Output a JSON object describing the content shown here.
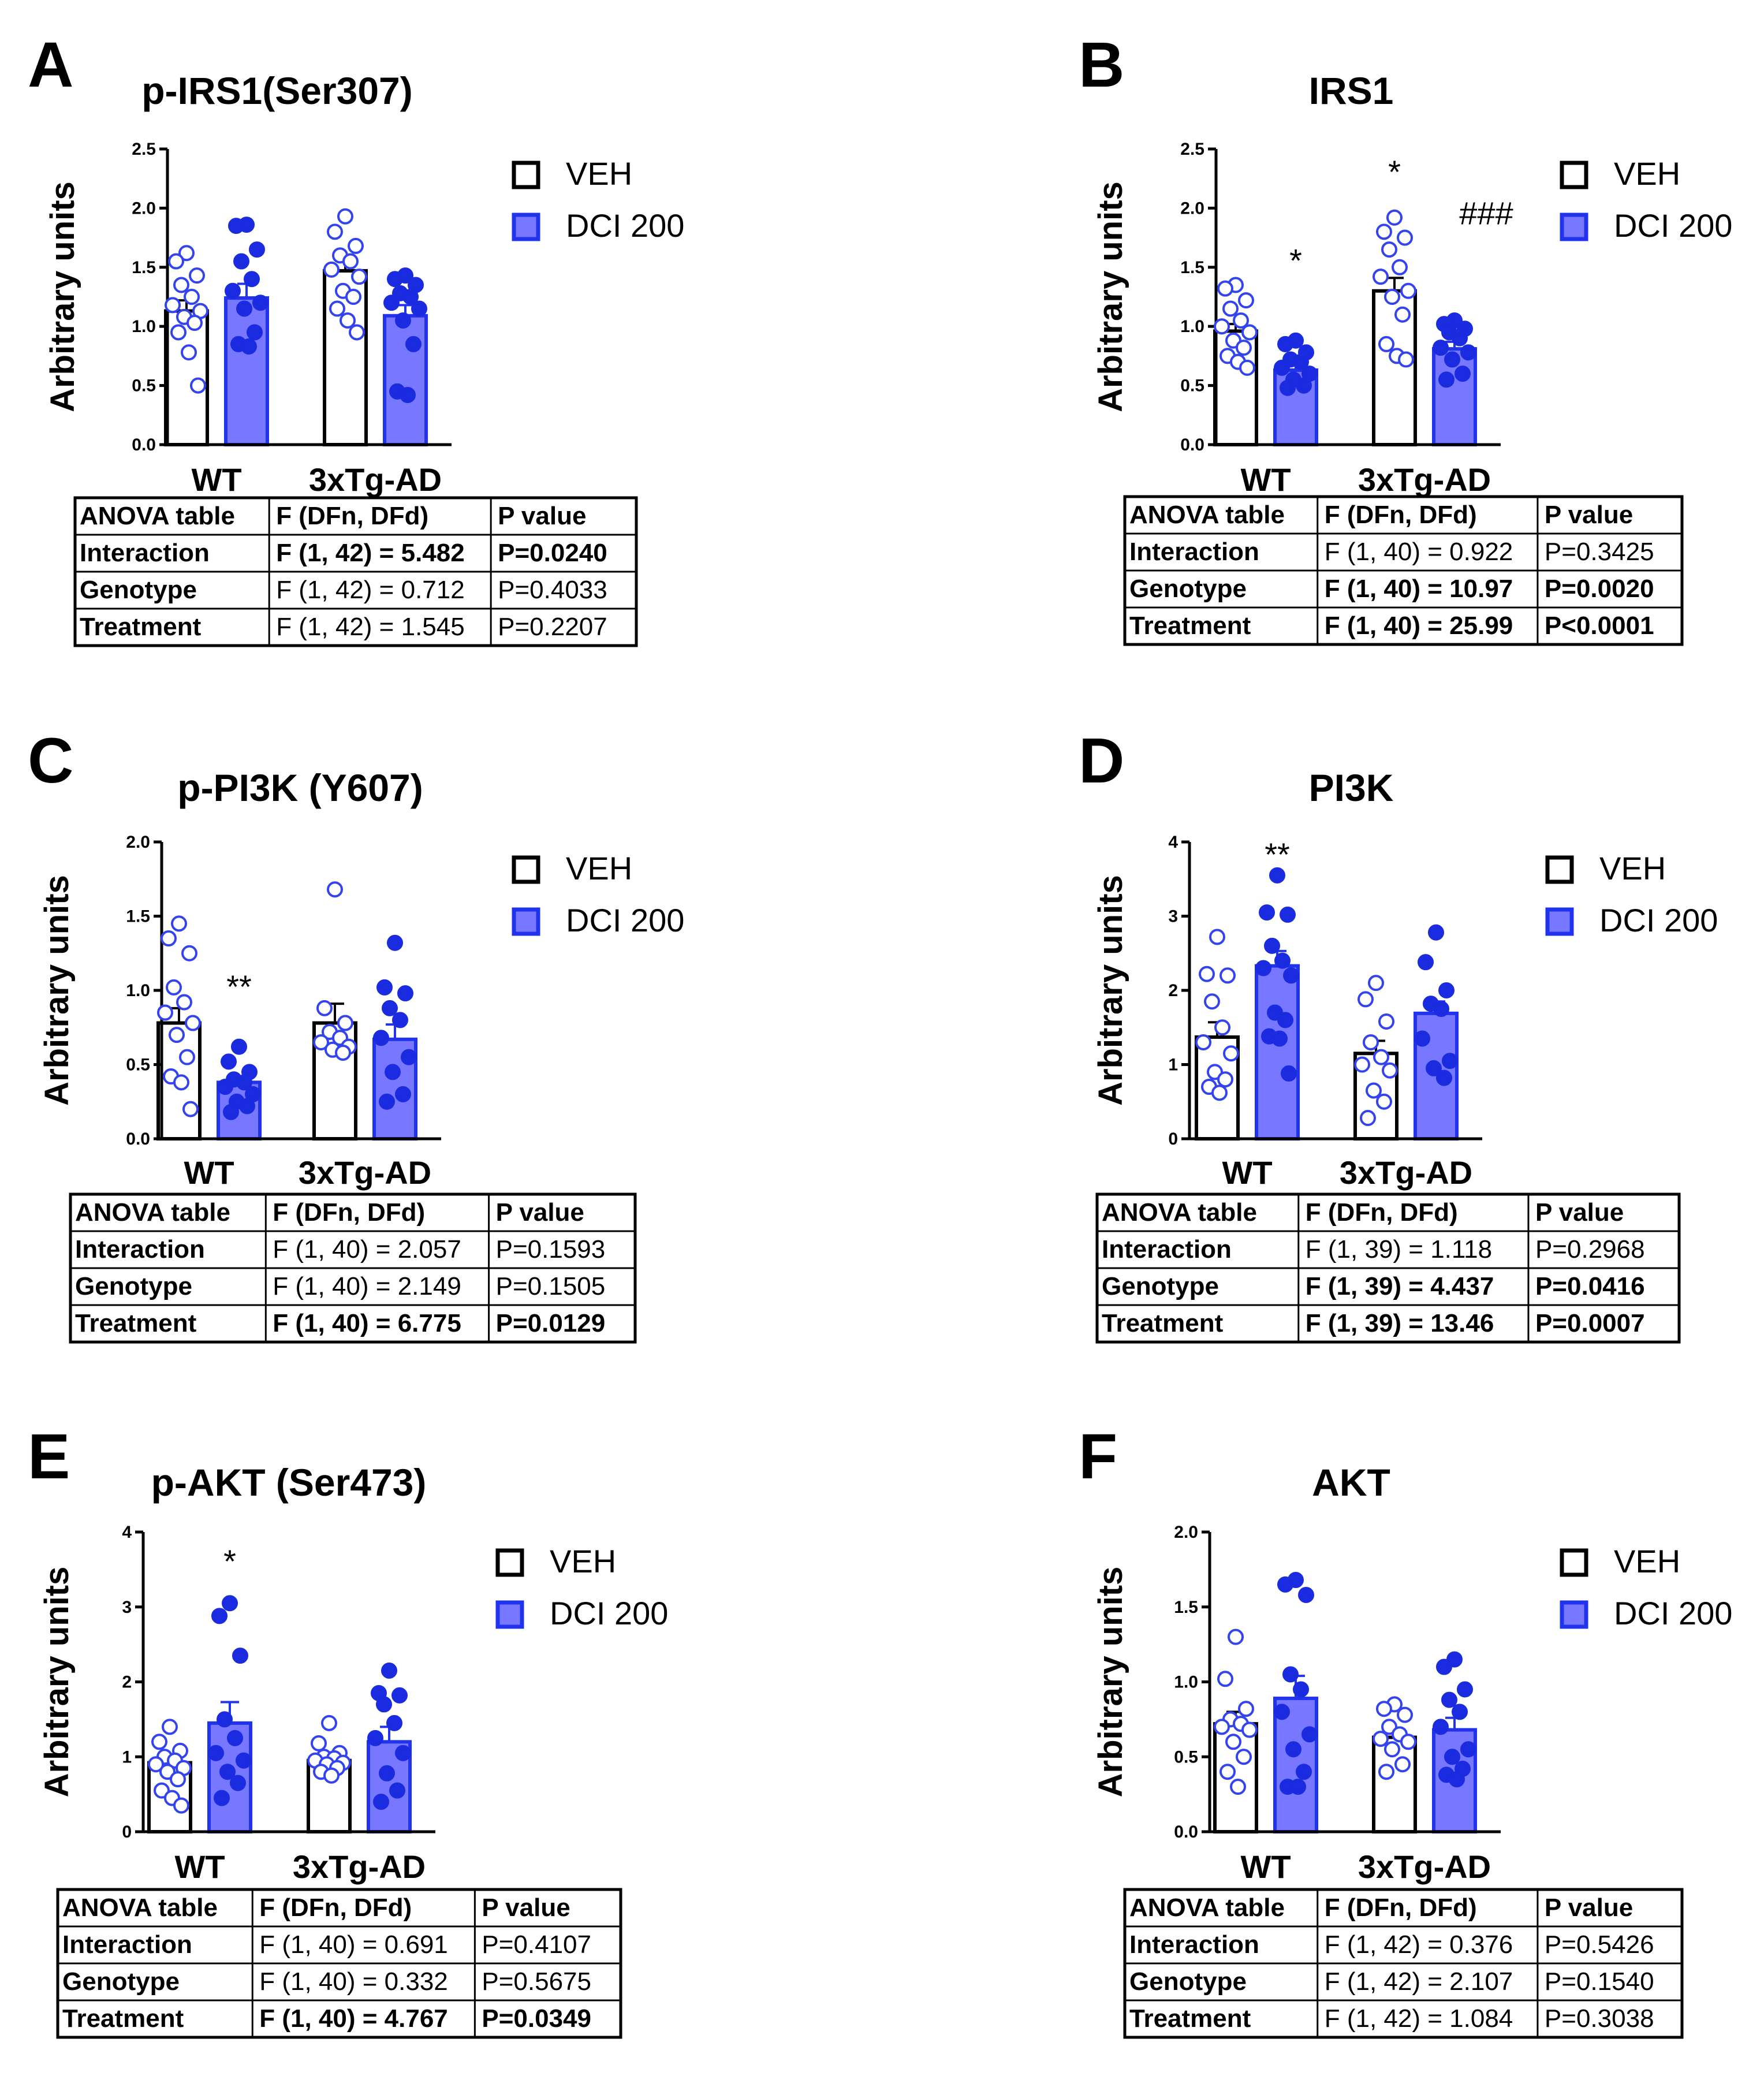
{
  "colors": {
    "veh_edge": "#000000",
    "dci_fill": "#7777ff",
    "dci_edge": "#2233ee",
    "veh_point_edge": "#3344ee",
    "dci_point": "#1a2be0"
  },
  "chart_data": [
    {
      "type": "bar",
      "panel": "A",
      "title": "p-IRS1(Ser307)",
      "ylabel": "Arbitrary units",
      "ylim": [
        0,
        2.5
      ],
      "yticks": [
        "0.0",
        "0.5",
        "1.0",
        "1.5",
        "2.0",
        "2.5"
      ],
      "categories": [
        "WT",
        "3xTg-AD"
      ],
      "legend": [
        "VEH",
        "DCI 200"
      ],
      "legend_position": "right",
      "series": [
        {
          "name": "VEH",
          "values": [
            1.13,
            1.47
          ],
          "sem": [
            0.09,
            0.09
          ],
          "points": [
            [
              1.62,
              1.55,
              1.43,
              1.35,
              1.25,
              1.18,
              1.13,
              1.08,
              1.03,
              0.95,
              0.78,
              0.5
            ],
            [
              1.93,
              1.8,
              1.68,
              1.6,
              1.55,
              1.48,
              1.42,
              1.3,
              1.25,
              1.15,
              1.05,
              0.95
            ]
          ]
        },
        {
          "name": "DCI 200",
          "values": [
            1.24,
            1.09
          ],
          "sem": [
            0.12,
            0.09
          ],
          "points": [
            [
              1.86,
              1.85,
              1.65,
              1.55,
              1.4,
              1.3,
              1.2,
              1.15,
              0.95,
              0.85,
              0.83
            ],
            [
              1.43,
              1.4,
              1.35,
              1.28,
              1.25,
              1.2,
              1.15,
              1.05,
              0.85,
              0.45,
              0.42
            ]
          ]
        }
      ],
      "annotations": [],
      "anova": {
        "headers": [
          "ANOVA table",
          "F (DFn, DFd)",
          "P value"
        ],
        "rows": [
          {
            "cells": [
              "Interaction",
              "F (1, 42) = 5.482",
              "P=0.0240"
            ],
            "bold": true
          },
          {
            "cells": [
              "Genotype",
              "F (1, 42) = 0.712",
              "P=0.4033"
            ],
            "bold": false
          },
          {
            "cells": [
              "Treatment",
              "F (1, 42) = 1.545",
              "P=0.2207"
            ],
            "bold": false
          }
        ]
      }
    },
    {
      "type": "bar",
      "panel": "B",
      "title": "IRS1",
      "ylabel": "Arbitrary units",
      "ylim": [
        0,
        2.5
      ],
      "yticks": [
        "0.0",
        "0.5",
        "1.0",
        "1.5",
        "2.0",
        "2.5"
      ],
      "categories": [
        "WT",
        "3xTg-AD"
      ],
      "legend": [
        "VEH",
        "DCI 200"
      ],
      "legend_position": "right",
      "series": [
        {
          "name": "VEH",
          "values": [
            0.96,
            1.3
          ],
          "sem": [
            0.06,
            0.11
          ],
          "points": [
            [
              1.35,
              1.32,
              1.22,
              1.15,
              1.05,
              1.0,
              0.95,
              0.88,
              0.82,
              0.75,
              0.7,
              0.65
            ],
            [
              1.92,
              1.8,
              1.75,
              1.65,
              1.5,
              1.42,
              1.3,
              1.25,
              1.1,
              0.85,
              0.75,
              0.72
            ]
          ]
        },
        {
          "name": "DCI 200",
          "values": [
            0.63,
            0.81
          ],
          "sem": [
            0.04,
            0.06
          ],
          "points": [
            [
              0.88,
              0.85,
              0.78,
              0.72,
              0.7,
              0.65,
              0.6,
              0.55,
              0.5,
              0.48
            ],
            [
              1.05,
              1.02,
              0.98,
              0.95,
              0.9,
              0.82,
              0.78,
              0.72,
              0.6,
              0.55
            ]
          ]
        }
      ],
      "annotations": [
        {
          "text": "*",
          "category": 0,
          "series": "DCI 200",
          "y": 1.55
        },
        {
          "text": "*",
          "category": 1,
          "series": "VEH",
          "y": 2.3
        },
        {
          "text": "###",
          "category": 1,
          "series": "DCI 200",
          "y": 1.95
        }
      ],
      "anova": {
        "headers": [
          "ANOVA table",
          "F (DFn, DFd)",
          "P value"
        ],
        "rows": [
          {
            "cells": [
              "Interaction",
              "F (1, 40) = 0.922",
              "P=0.3425"
            ],
            "bold": false
          },
          {
            "cells": [
              "Genotype",
              "F (1, 40) = 10.97",
              "P=0.0020"
            ],
            "bold": true
          },
          {
            "cells": [
              "Treatment",
              "F (1, 40) = 25.99",
              "P<0.0001"
            ],
            "bold": true
          }
        ]
      }
    },
    {
      "type": "bar",
      "panel": "C",
      "title": "p-PI3K (Y607)",
      "ylabel": "Arbitrary units",
      "ylim": [
        0,
        2.0
      ],
      "yticks": [
        "0.0",
        "0.5",
        "1.0",
        "1.5",
        "2.0"
      ],
      "categories": [
        "WT",
        "3xTg-AD"
      ],
      "legend": [
        "VEH",
        "DCI 200"
      ],
      "legend_position": "right",
      "series": [
        {
          "name": "VEH",
          "values": [
            0.78,
            0.78
          ],
          "sem": [
            0.1,
            0.13
          ],
          "points": [
            [
              1.45,
              1.35,
              1.25,
              1.02,
              0.92,
              0.85,
              0.78,
              0.7,
              0.55,
              0.42,
              0.38,
              0.2
            ],
            [
              1.68,
              0.88,
              0.78,
              0.72,
              0.68,
              0.65,
              0.62,
              0.6,
              0.58
            ]
          ]
        },
        {
          "name": "DCI 200",
          "values": [
            0.38,
            0.67
          ],
          "sem": [
            0.04,
            0.1
          ],
          "points": [
            [
              0.62,
              0.52,
              0.45,
              0.4,
              0.38,
              0.35,
              0.3,
              0.25,
              0.22,
              0.18
            ],
            [
              1.32,
              1.02,
              0.98,
              0.88,
              0.8,
              0.68,
              0.55,
              0.45,
              0.3,
              0.25
            ]
          ]
        }
      ],
      "annotations": [
        {
          "text": "**",
          "category": 0,
          "series": "DCI 200",
          "y": 1.02
        }
      ],
      "anova": {
        "headers": [
          "ANOVA table",
          "F (DFn, DFd)",
          "P value"
        ],
        "rows": [
          {
            "cells": [
              "Interaction",
              "F (1, 40) = 2.057",
              "P=0.1593"
            ],
            "bold": false
          },
          {
            "cells": [
              "Genotype",
              "F (1, 40) = 2.149",
              "P=0.1505"
            ],
            "bold": false
          },
          {
            "cells": [
              "Treatment",
              "F (1, 40) = 6.775",
              "P=0.0129"
            ],
            "bold": true
          }
        ]
      }
    },
    {
      "type": "bar",
      "panel": "D",
      "title": "PI3K",
      "ylabel": "Arbitrary units",
      "ylim": [
        0,
        4
      ],
      "yticks": [
        "0",
        "1",
        "2",
        "3",
        "4"
      ],
      "categories": [
        "WT",
        "3xTg-AD"
      ],
      "legend": [
        "VEH",
        "DCI 200"
      ],
      "legend_position": "right",
      "series": [
        {
          "name": "VEH",
          "values": [
            1.37,
            1.15
          ],
          "sem": [
            0.2,
            0.17
          ],
          "points": [
            [
              2.72,
              2.22,
              2.2,
              1.85,
              1.5,
              1.3,
              1.15,
              0.9,
              0.8,
              0.7,
              0.62
            ],
            [
              2.1,
              1.88,
              1.58,
              1.3,
              1.1,
              1.0,
              0.92,
              0.65,
              0.5,
              0.28
            ]
          ]
        },
        {
          "name": "DCI 200",
          "values": [
            2.33,
            1.69
          ],
          "sem": [
            0.2,
            0.16
          ],
          "points": [
            [
              3.55,
              3.05,
              3.02,
              2.6,
              2.4,
              2.3,
              2.2,
              1.7,
              1.6,
              1.38,
              1.35,
              0.88
            ],
            [
              2.78,
              2.38,
              2.0,
              1.82,
              1.75,
              1.35,
              1.05,
              0.95,
              0.82
            ]
          ]
        }
      ],
      "annotations": [
        {
          "text": "**",
          "category": 0,
          "series": "DCI 200",
          "y": 3.82
        }
      ],
      "anova": {
        "headers": [
          "ANOVA table",
          "F (DFn, DFd)",
          "P value"
        ],
        "rows": [
          {
            "cells": [
              "Interaction",
              "F (1, 39) = 1.118",
              "P=0.2968"
            ],
            "bold": false
          },
          {
            "cells": [
              "Genotype",
              "F (1, 39) = 4.437",
              "P=0.0416"
            ],
            "bold": true
          },
          {
            "cells": [
              "Treatment",
              "F (1, 39) = 13.46",
              "P=0.0007"
            ],
            "bold": true
          }
        ]
      }
    },
    {
      "type": "bar",
      "panel": "E",
      "title": "p-AKT (Ser473)",
      "ylabel": "Arbitrary units",
      "ylim": [
        0,
        4
      ],
      "yticks": [
        "0",
        "1",
        "2",
        "3",
        "4"
      ],
      "categories": [
        "WT",
        "3xTg-AD"
      ],
      "legend": [
        "VEH",
        "DCI 200"
      ],
      "legend_position": "right",
      "series": [
        {
          "name": "VEH",
          "values": [
            0.92,
            0.95
          ],
          "sem": [
            0.08,
            0.05
          ],
          "points": [
            [
              1.4,
              1.2,
              1.08,
              1.0,
              0.95,
              0.9,
              0.85,
              0.8,
              0.7,
              0.55,
              0.45,
              0.35
            ],
            [
              1.45,
              1.18,
              1.05,
              1.0,
              0.98,
              0.95,
              0.92,
              0.9,
              0.85,
              0.8,
              0.75
            ]
          ]
        },
        {
          "name": "DCI 200",
          "values": [
            1.45,
            1.2
          ],
          "sem": [
            0.28,
            0.2
          ],
          "points": [
            [
              3.05,
              2.88,
              2.35,
              1.5,
              1.25,
              1.05,
              0.95,
              0.8,
              0.65,
              0.45
            ],
            [
              2.15,
              1.85,
              1.82,
              1.7,
              1.45,
              1.25,
              1.05,
              0.78,
              0.55,
              0.4
            ]
          ]
        }
      ],
      "annotations": [
        {
          "text": "*",
          "category": 0,
          "series": "DCI 200",
          "y": 3.6
        }
      ],
      "anova": {
        "headers": [
          "ANOVA table",
          "F (DFn, DFd)",
          "P value"
        ],
        "rows": [
          {
            "cells": [
              "Interaction",
              "F (1, 40) = 0.691",
              "P=0.4107"
            ],
            "bold": false
          },
          {
            "cells": [
              "Genotype",
              "F (1, 40) = 0.332",
              "P=0.5675"
            ],
            "bold": false
          },
          {
            "cells": [
              "Treatment",
              "F (1, 40) = 4.767",
              "P=0.0349"
            ],
            "bold": true
          }
        ]
      }
    },
    {
      "type": "bar",
      "panel": "F",
      "title": "AKT",
      "ylabel": "Arbitrary units",
      "ylim": [
        0,
        2.0
      ],
      "yticks": [
        "0.0",
        "0.5",
        "1.0",
        "1.5",
        "2.0"
      ],
      "categories": [
        "WT",
        "3xTg-AD"
      ],
      "legend": [
        "VEH",
        "DCI 200"
      ],
      "legend_position": "right",
      "series": [
        {
          "name": "VEH",
          "values": [
            0.72,
            0.63
          ],
          "sem": [
            0.08,
            0.04
          ],
          "points": [
            [
              1.3,
              1.02,
              0.82,
              0.75,
              0.72,
              0.7,
              0.68,
              0.6,
              0.5,
              0.4,
              0.3
            ],
            [
              0.85,
              0.82,
              0.78,
              0.7,
              0.65,
              0.62,
              0.6,
              0.55,
              0.45,
              0.4
            ]
          ]
        },
        {
          "name": "DCI 200",
          "values": [
            0.89,
            0.68
          ],
          "sem": [
            0.15,
            0.08
          ],
          "points": [
            [
              1.68,
              1.65,
              1.58,
              1.05,
              0.95,
              0.8,
              0.65,
              0.55,
              0.4,
              0.3,
              0.3
            ],
            [
              1.15,
              1.1,
              0.95,
              0.88,
              0.8,
              0.7,
              0.55,
              0.5,
              0.42,
              0.38,
              0.35
            ]
          ]
        }
      ],
      "annotations": [],
      "anova": {
        "headers": [
          "ANOVA table",
          "F (DFn, DFd)",
          "P value"
        ],
        "rows": [
          {
            "cells": [
              "Interaction",
              "F (1, 42) = 0.376",
              "P=0.5426"
            ],
            "bold": false
          },
          {
            "cells": [
              "Genotype",
              "F (1, 42) = 2.107",
              "P=0.1540"
            ],
            "bold": false
          },
          {
            "cells": [
              "Treatment",
              "F (1, 42) = 1.084",
              "P=0.3038"
            ],
            "bold": false
          }
        ]
      }
    }
  ]
}
